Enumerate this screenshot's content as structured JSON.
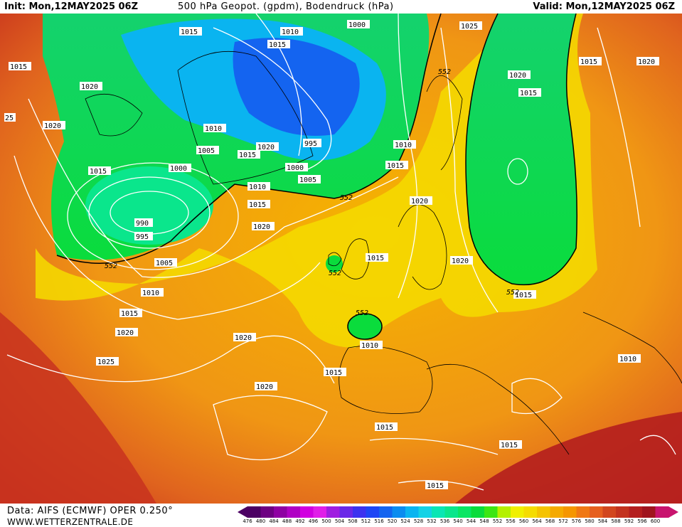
{
  "header": {
    "init": "Init: Mon,12MAY2025 06Z",
    "title": "500 hPa Geopot. (gpdm), Bodendruck (hPa)",
    "valid": "Valid: Mon,12MAY2025 06Z"
  },
  "footer": {
    "data_source": "Data: AIFS (ECMWF) OPER 0.250°",
    "website": "WWW.WETTERZENTRALE.DE"
  },
  "colorbar": {
    "values": [
      "476",
      "480",
      "484",
      "488",
      "492",
      "496",
      "500",
      "504",
      "508",
      "512",
      "516",
      "520",
      "524",
      "528",
      "532",
      "536",
      "540",
      "544",
      "548",
      "552",
      "556",
      "560",
      "564",
      "568",
      "572",
      "576",
      "580",
      "584",
      "588",
      "592",
      "596",
      "600"
    ],
    "colors": [
      "#4b0063",
      "#6e0082",
      "#8f00a3",
      "#b000c4",
      "#d100e0",
      "#e01ee8",
      "#a01ee0",
      "#6a28e8",
      "#3c32f0",
      "#1e46f5",
      "#1464f0",
      "#0a8cf0",
      "#0ab4f0",
      "#14d2e6",
      "#0ae6b4",
      "#0ae68c",
      "#0ae664",
      "#0adc3c",
      "#3ce614",
      "#b4f000",
      "#f0f000",
      "#f5dc00",
      "#f5c300",
      "#f5aa00",
      "#f59600",
      "#f07814",
      "#e65f1e",
      "#d2461e",
      "#c3321e",
      "#b41e1e",
      "#a0141e",
      "#c8146e"
    ]
  },
  "map_labels": {
    "isobars": [
      "1015",
      "1010",
      "1000",
      "1025",
      "1015",
      "1020",
      "1020",
      "1015",
      "1010",
      "1005",
      "1015",
      "1020",
      "995",
      "1010",
      "1000",
      "1005",
      "1015",
      "1010",
      "1020",
      "1015",
      "1015",
      "1020",
      "1020",
      "1000",
      "990",
      "995",
      "1005",
      "1010",
      "1015",
      "1020",
      "1025",
      "1015",
      "1020",
      "1020",
      "1010",
      "1015",
      "1015",
      "1015",
      "1010",
      "1020",
      "1015"
    ],
    "gpdm": [
      "552",
      "552",
      "552",
      "552",
      "552",
      "552"
    ],
    "left_edge": "25"
  }
}
